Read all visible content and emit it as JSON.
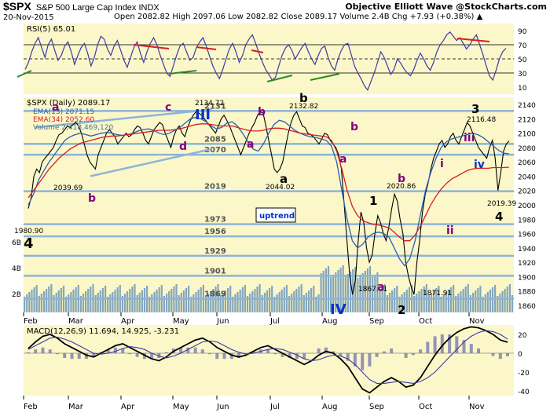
{
  "header": {
    "symbol": "$SPX",
    "description": "S&P 500 Large Cap Index  INDX",
    "brand": "Objective Elliott Wave  @StockCharts.com",
    "date": "20-Nov-2015",
    "ohlc": "Open 2082.82  High 2097.06  Low 2082.82  Close 2089.17  Volume 2.4B  Chg +7.93 (+0.38%) ▲"
  },
  "colors": {
    "panel_bg": "#fbf7c9",
    "price_line": "#000000",
    "ema13": "#2b5fb8",
    "ema34": "#d42020",
    "volume": "#6e98b8",
    "level_line": "#8cb4d8",
    "wave_label": "#800080",
    "major_label": "#0033cc",
    "rsi_line": "#3a3aa8",
    "trendline_green": "#2a8a2a",
    "trendline_red": "#d42020"
  },
  "chart_data": [
    {
      "type": "line",
      "title": "RSI(5) 65.01",
      "ylim": [
        0,
        100
      ],
      "y_ticks": [
        "10",
        "30",
        "50",
        "70",
        "90"
      ],
      "reference_lines": [
        30,
        50,
        70
      ],
      "values": [
        35,
        45,
        60,
        72,
        80,
        66,
        52,
        70,
        78,
        62,
        48,
        55,
        68,
        74,
        60,
        42,
        55,
        66,
        72,
        58,
        40,
        52,
        70,
        82,
        78,
        64,
        55,
        68,
        76,
        62,
        48,
        38,
        52,
        66,
        74,
        58,
        45,
        60,
        72,
        80,
        70,
        55,
        42,
        30,
        25,
        40,
        55,
        68,
        72,
        60,
        48,
        52,
        66,
        74,
        80,
        68,
        54,
        40,
        30,
        22,
        35,
        50,
        64,
        72,
        60,
        45,
        55,
        70,
        78,
        84,
        72,
        58,
        46,
        35,
        28,
        20,
        24,
        40,
        55,
        65,
        70,
        62,
        50,
        58,
        66,
        72,
        60,
        50,
        42,
        55,
        65,
        68,
        52,
        40,
        34,
        50,
        62,
        70,
        72,
        56,
        40,
        30,
        22,
        12,
        6,
        18,
        30,
        45,
        60,
        52,
        40,
        28,
        35,
        50,
        44,
        36,
        30,
        26,
        35,
        48,
        58,
        50,
        40,
        34,
        45,
        60,
        70,
        76,
        84,
        88,
        82,
        76,
        80,
        72,
        64,
        70,
        78,
        84,
        70,
        56,
        40,
        26,
        20,
        34,
        50,
        60,
        65.01
      ]
    },
    {
      "type": "line",
      "title": "$SPX (Daily) 2089.17",
      "xlabel": "",
      "ylabel": "",
      "ylim": [
        1850,
        2150
      ],
      "x_ticks": [
        "Feb",
        "Mar",
        "Apr",
        "May",
        "Jun",
        "Jul",
        "Aug",
        "Sep",
        "Oct",
        "Nov"
      ],
      "y_ticks": [
        "1860",
        "1880",
        "1900",
        "1920",
        "1940",
        "1960",
        "1980",
        "2000",
        "2020",
        "2040",
        "2060",
        "2080",
        "2100",
        "2120",
        "2140"
      ],
      "volume_ticks": [
        "2B",
        "4B",
        "6B"
      ],
      "legend": [
        "EMA(13) 2071.15",
        "EMA(34) 2052.60",
        "Volume 2,418,469,120"
      ],
      "series": [
        {
          "name": "$SPX (Daily) 2089.17",
          "values": [
            1995,
            2010,
            2040,
            2050,
            2045,
            2060,
            2065,
            2070,
            2075,
            2080,
            2090,
            2098,
            2100,
            2105,
            2110,
            2108,
            2112,
            2115,
            2110,
            2100,
            2085,
            2070,
            2060,
            2055,
            2050,
            2070,
            2080,
            2090,
            2100,
            2105,
            2100,
            2095,
            2085,
            2090,
            2095,
            2100,
            2095,
            2098,
            2105,
            2110,
            2108,
            2100,
            2090,
            2085,
            2095,
            2105,
            2110,
            2115,
            2112,
            2100,
            2090,
            2080,
            2095,
            2105,
            2110,
            2100,
            2095,
            2108,
            2118,
            2125,
            2130,
            2128,
            2125,
            2120,
            2115,
            2110,
            2105,
            2100,
            2110,
            2120,
            2125,
            2118,
            2110,
            2100,
            2090,
            2080,
            2070,
            2080,
            2090,
            2100,
            2108,
            2115,
            2125,
            2130,
            2128,
            2110,
            2090,
            2070,
            2050,
            2045,
            2050,
            2060,
            2080,
            2100,
            2115,
            2125,
            2130,
            2120,
            2110,
            2108,
            2100,
            2098,
            2095,
            2090,
            2085,
            2092,
            2100,
            2098,
            2090,
            2085,
            2080,
            2070,
            2050,
            2000,
            1950,
            1900,
            1875,
            1895,
            1950,
            1990,
            1975,
            1940,
            1920,
            1930,
            1960,
            1985,
            1975,
            1960,
            1950,
            1970,
            1995,
            2015,
            2005,
            1980,
            1960,
            1920,
            1900,
            1885,
            1875,
            1920,
            1950,
            1990,
            2015,
            2030,
            2050,
            2065,
            2075,
            2085,
            2090,
            2080,
            2085,
            2095,
            2100,
            2090,
            2085,
            2095,
            2105,
            2115,
            2110,
            2100,
            2090,
            2080,
            2075,
            2070,
            2065,
            2080,
            2090,
            2065,
            2020,
            2045,
            2075,
            2085,
            2089.17
          ]
        },
        {
          "name": "EMA(13) 2071.15",
          "values": [
            2000,
            2015,
            2035,
            2048,
            2060,
            2070,
            2080,
            2090,
            2095,
            2098,
            2100,
            2098,
            2096,
            2098,
            2100,
            2101,
            2100,
            2098,
            2097,
            2098,
            2100,
            2103,
            2105,
            2106,
            2104,
            2100,
            2098,
            2100,
            2104,
            2108,
            2114,
            2120,
            2122,
            2120,
            2116,
            2110,
            2106,
            2108,
            2114,
            2116,
            2110,
            2100,
            2088,
            2078,
            2075,
            2085,
            2100,
            2112,
            2118,
            2116,
            2110,
            2104,
            2100,
            2097,
            2095,
            2094,
            2092,
            2090,
            2082,
            2060,
            2020,
            1980,
            1950,
            1940,
            1945,
            1955,
            1960,
            1962,
            1960,
            1955,
            1940,
            1925,
            1915,
            1925,
            1950,
            1985,
            2020,
            2045,
            2065,
            2080,
            2088,
            2092,
            2094,
            2096,
            2098,
            2100,
            2098,
            2094,
            2088,
            2082,
            2076,
            2072,
            2071.15
          ]
        },
        {
          "name": "EMA(34) 2052.60",
          "values": [
            2010,
            2020,
            2030,
            2040,
            2050,
            2058,
            2066,
            2072,
            2078,
            2082,
            2086,
            2088,
            2090,
            2092,
            2094,
            2095,
            2096,
            2096,
            2097,
            2098,
            2099,
            2100,
            2101,
            2102,
            2103,
            2104,
            2104,
            2104,
            2105,
            2106,
            2108,
            2110,
            2112,
            2113,
            2113,
            2112,
            2111,
            2110,
            2110,
            2110,
            2108,
            2106,
            2104,
            2103,
            2103,
            2104,
            2106,
            2107,
            2107,
            2106,
            2104,
            2102,
            2100,
            2099,
            2098,
            2097,
            2096,
            2095,
            2090,
            2075,
            2050,
            2020,
            1998,
            1985,
            1978,
            1975,
            1973,
            1972,
            1970,
            1968,
            1962,
            1955,
            1950,
            1950,
            1958,
            1970,
            1985,
            2000,
            2012,
            2022,
            2030,
            2036,
            2040,
            2044,
            2048,
            2050,
            2051,
            2051,
            2051,
            2052,
            2052,
            2052,
            2052.6
          ]
        }
      ],
      "horizontal_levels": [
        {
          "value": 2131,
          "label": "2131"
        },
        {
          "value": 2085,
          "label": "2085"
        },
        {
          "value": 2070,
          "label": "2070"
        },
        {
          "value": 2019,
          "label": "2019"
        },
        {
          "value": 1973,
          "label": "1973"
        },
        {
          "value": 1956,
          "label": "1956"
        },
        {
          "value": 1929,
          "label": "1929"
        },
        {
          "value": 1901,
          "label": "1901"
        },
        {
          "value": 1869,
          "label": "1869"
        }
      ],
      "annotations": [
        {
          "text": "1980.90",
          "kind": "price"
        },
        {
          "text": "4",
          "kind": "wave-major"
        },
        {
          "text": "a",
          "kind": "wave"
        },
        {
          "text": "b",
          "kind": "wave"
        },
        {
          "text": "c",
          "kind": "wave"
        },
        {
          "text": "d",
          "kind": "wave"
        },
        {
          "text": "2039.69",
          "kind": "price"
        },
        {
          "text": "III",
          "kind": "wave-major-blue"
        },
        {
          "text": "2134.72",
          "kind": "price"
        },
        {
          "text": "b",
          "kind": "wave"
        },
        {
          "text": "a",
          "kind": "wave"
        },
        {
          "text": "b",
          "kind": "wave-black"
        },
        {
          "text": "2132.82",
          "kind": "price"
        },
        {
          "text": "2044.02",
          "kind": "price"
        },
        {
          "text": "a",
          "kind": "wave-black"
        },
        {
          "text": "uptrend",
          "kind": "box"
        },
        {
          "text": "a",
          "kind": "wave"
        },
        {
          "text": "b",
          "kind": "wave"
        },
        {
          "text": "1",
          "kind": "wave-black"
        },
        {
          "text": "IV",
          "kind": "wave-major-blue"
        },
        {
          "text": "1867.01",
          "kind": "price"
        },
        {
          "text": "a",
          "kind": "wave"
        },
        {
          "text": "b",
          "kind": "wave"
        },
        {
          "text": "2020.86",
          "kind": "price"
        },
        {
          "text": "1871.91",
          "kind": "price"
        },
        {
          "text": "2",
          "kind": "wave-black"
        },
        {
          "text": "i",
          "kind": "wave"
        },
        {
          "text": "ii",
          "kind": "wave"
        },
        {
          "text": "iii",
          "kind": "wave"
        },
        {
          "text": "iv",
          "kind": "wave-blue"
        },
        {
          "text": "3",
          "kind": "wave-black"
        },
        {
          "text": "2116.48",
          "kind": "price"
        },
        {
          "text": "2019.39",
          "kind": "price"
        },
        {
          "text": "4",
          "kind": "wave-black"
        }
      ]
    },
    {
      "type": "line",
      "title": "MACD(12,26,9) 11.694, 14.925, -3.231",
      "ylim": [
        -45,
        30
      ],
      "y_ticks": [
        "-40",
        "-20",
        "0",
        "20"
      ],
      "x_ticks": [
        "Feb",
        "Mar",
        "Apr",
        "May",
        "Jun",
        "Jul",
        "Aug",
        "Sep",
        "Oct",
        "Nov"
      ],
      "series": [
        {
          "name": "MACD",
          "values": [
            5,
            12,
            18,
            20,
            16,
            10,
            6,
            2,
            -2,
            -4,
            0,
            4,
            8,
            10,
            6,
            2,
            -2,
            -6,
            -8,
            -4,
            2,
            6,
            10,
            14,
            16,
            12,
            6,
            2,
            -2,
            -4,
            -2,
            2,
            6,
            8,
            4,
            0,
            -4,
            -8,
            -12,
            -8,
            -2,
            2,
            0,
            -6,
            -14,
            -26,
            -38,
            -42,
            -36,
            -30,
            -26,
            -30,
            -36,
            -34,
            -26,
            -14,
            -2,
            8,
            16,
            22,
            26,
            28,
            27,
            24,
            20,
            14,
            11.694
          ]
        },
        {
          "name": "Signal",
          "values": [
            4,
            8,
            12,
            16,
            17,
            15,
            12,
            8,
            4,
            0,
            -1,
            0,
            2,
            5,
            7,
            6,
            4,
            0,
            -3,
            -5,
            -3,
            0,
            4,
            8,
            12,
            13,
            12,
            8,
            4,
            1,
            -1,
            0,
            2,
            4,
            5,
            4,
            1,
            -2,
            -6,
            -8,
            -7,
            -4,
            -2,
            -3,
            -6,
            -12,
            -20,
            -28,
            -32,
            -32,
            -31,
            -30,
            -31,
            -32,
            -30,
            -26,
            -20,
            -12,
            -4,
            4,
            12,
            18,
            22,
            24,
            23,
            20,
            14.925
          ]
        },
        {
          "name": "Histogram",
          "values": [
            1,
            4,
            6,
            4,
            -1,
            -5,
            -6,
            -6,
            -6,
            -4,
            1,
            4,
            6,
            5,
            -1,
            -4,
            -6,
            -6,
            -5,
            1,
            5,
            6,
            6,
            6,
            4,
            -1,
            -6,
            -6,
            -6,
            -5,
            -1,
            2,
            4,
            4,
            -1,
            -4,
            -5,
            -6,
            -6,
            0,
            5,
            6,
            2,
            -3,
            -8,
            -14,
            -18,
            -14,
            -4,
            2,
            5,
            0,
            -5,
            -2,
            4,
            12,
            18,
            20,
            20,
            18,
            14,
            10,
            5,
            0,
            -3,
            -6,
            -3.231
          ]
        }
      ]
    }
  ]
}
